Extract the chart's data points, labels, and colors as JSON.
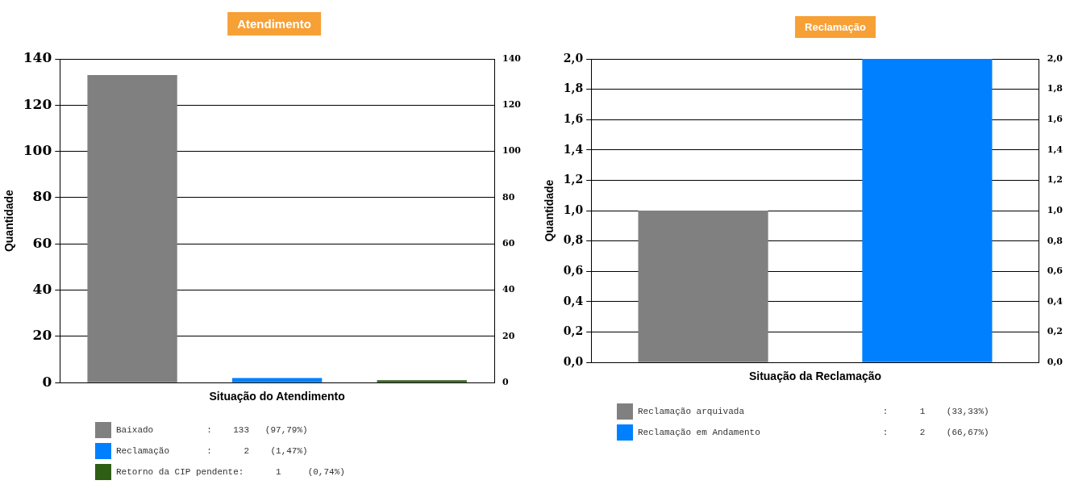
{
  "chart_data": [
    {
      "type": "bar",
      "title": "Atendimento",
      "xlabel": "Situação do Atendimento",
      "ylabel": "Quantidade",
      "categories": [
        null,
        null,
        null
      ],
      "series": [
        {
          "name": "Baixado          :    133   (97,79%)",
          "color": "#808080",
          "values": [
            133,
            null,
            null
          ]
        },
        {
          "name": "Reclamação       :      2    (1,47%)",
          "color": "#0080ff",
          "values": [
            null,
            2,
            null
          ]
        },
        {
          "name": "Retorno da CIP pendente:      1     (0,74%)",
          "color": "#2e5e14",
          "values": [
            null,
            null,
            1
          ]
        }
      ],
      "ylim": [
        0,
        140
      ],
      "yticks": [
        0,
        20,
        40,
        60,
        80,
        100,
        120,
        140
      ],
      "y2lim": [
        0,
        140
      ],
      "y2ticks": [
        0,
        20,
        40,
        60,
        80,
        100,
        120,
        140
      ],
      "grid": "y",
      "legend": "bottom"
    },
    {
      "type": "bar",
      "title": "Reclamação",
      "xlabel": "Situação da Reclamação",
      "ylabel": "Quantidade",
      "categories": [
        null,
        null
      ],
      "series": [
        {
          "name": "Reclamação arquivada                          :      1    (33,33%)",
          "color": "#808080",
          "values": [
            1,
            null
          ]
        },
        {
          "name": "Reclamação em Andamento                       :      2    (66,67%)",
          "color": "#0080ff",
          "values": [
            null,
            2
          ]
        }
      ],
      "ylim": [
        0,
        2
      ],
      "yticks": [
        {
          "value": 0,
          "label": "0,0"
        },
        {
          "value": 0.2,
          "label": "0,2"
        },
        {
          "value": 0.4,
          "label": "0,4"
        },
        {
          "value": 0.6,
          "label": "0,6"
        },
        {
          "value": 0.8,
          "label": "0,8"
        },
        {
          "value": 1,
          "label": "1,0"
        },
        {
          "value": 1.2,
          "label": "1,2"
        },
        {
          "value": 1.4,
          "label": "1,4"
        },
        {
          "value": 1.6,
          "label": "1,6"
        },
        {
          "value": 1.8,
          "label": "1,8"
        },
        {
          "value": 2,
          "label": "2,0"
        }
      ],
      "y2lim": [
        0,
        2
      ],
      "y2ticks": [
        {
          "value": 0,
          "label": "0,0"
        },
        {
          "value": 0.2,
          "label": "0,2"
        },
        {
          "value": 0.4,
          "label": "0,4"
        },
        {
          "value": 0.6,
          "label": "0,6"
        },
        {
          "value": 0.8,
          "label": "0,8"
        },
        {
          "value": 1,
          "label": "1,0"
        },
        {
          "value": 1.2,
          "label": "1,2"
        },
        {
          "value": 1.4,
          "label": "1,4"
        },
        {
          "value": 1.6,
          "label": "1,6"
        },
        {
          "value": 1.8,
          "label": "1,8"
        },
        {
          "value": 2,
          "label": "2,0"
        }
      ],
      "grid": "y",
      "legend": "bottom"
    }
  ]
}
